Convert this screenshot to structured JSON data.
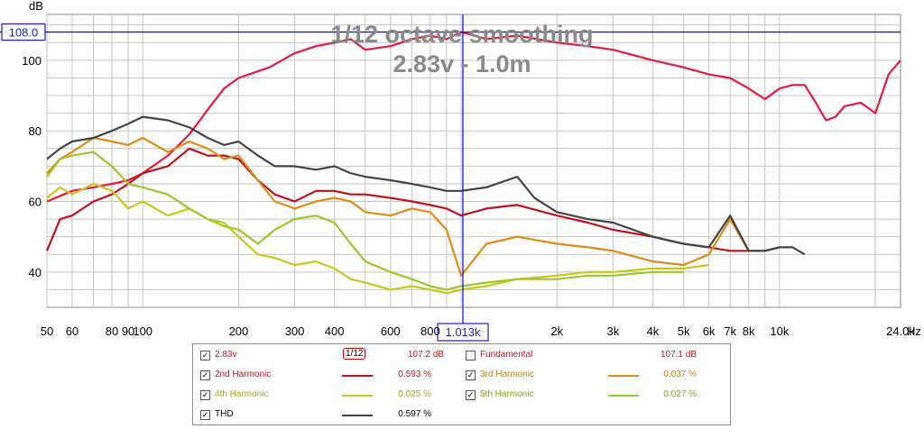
{
  "chart_data": {
    "type": "line",
    "title": "1/12 octave smoothing",
    "subtitle": "2.83v - 1.0m",
    "ylabel": "dB",
    "xunit": "Hz",
    "xscale": "log",
    "xlim": [
      50,
      24000
    ],
    "ylim": [
      30,
      113
    ],
    "x_ticks": [
      {
        "v": 50,
        "label": "50"
      },
      {
        "v": 60,
        "label": "60"
      },
      {
        "v": 80,
        "label": "80"
      },
      {
        "v": 90,
        "label": "90"
      },
      {
        "v": 100,
        "label": "100"
      },
      {
        "v": 200,
        "label": "200"
      },
      {
        "v": 300,
        "label": "300"
      },
      {
        "v": 400,
        "label": "400"
      },
      {
        "v": 600,
        "label": "600"
      },
      {
        "v": 800,
        "label": "800"
      },
      {
        "v": 2000,
        "label": "2k"
      },
      {
        "v": 3000,
        "label": "3k"
      },
      {
        "v": 4000,
        "label": "4k"
      },
      {
        "v": 5000,
        "label": "5k"
      },
      {
        "v": 6000,
        "label": "6k"
      },
      {
        "v": 7000,
        "label": "7k"
      },
      {
        "v": 8000,
        "label": "8k"
      },
      {
        "v": 10000,
        "label": "10k"
      },
      {
        "v": 24000,
        "label": "24.0k"
      }
    ],
    "y_ticks": [
      40,
      60,
      80,
      100
    ],
    "cursor": {
      "x": 1013,
      "y": 108.0,
      "x_label": "1.013k",
      "y_label": "108.0"
    },
    "grid": true,
    "series": [
      {
        "name": "2.83v",
        "color": "#e8173c",
        "x": [
          50,
          60,
          70,
          80,
          90,
          100,
          120,
          140,
          160,
          180,
          200,
          250,
          300,
          350,
          400,
          450,
          500,
          600,
          700,
          800,
          900,
          1000,
          1100,
          1200,
          1500,
          2000,
          2500,
          3000,
          4000,
          5000,
          6000,
          7000,
          8000,
          9000,
          10000,
          11000,
          12000,
          13000,
          14000,
          15000,
          16000,
          18000,
          20000,
          22000,
          24000
        ],
        "y": [
          60,
          63,
          64,
          65,
          66,
          68,
          73,
          79,
          86,
          92,
          95,
          98,
          102,
          104,
          105,
          106,
          103,
          104,
          106,
          107,
          106,
          108,
          107,
          106,
          107,
          105,
          104,
          103,
          100,
          98,
          96,
          95,
          92,
          89,
          92,
          93,
          93,
          88,
          83,
          84,
          87,
          88,
          85,
          96,
          100
        ]
      },
      {
        "name": "2nd Harmonic",
        "color": "#c0101e",
        "x": [
          50,
          55,
          60,
          70,
          80,
          90,
          100,
          120,
          140,
          160,
          180,
          200,
          230,
          260,
          300,
          350,
          400,
          450,
          500,
          600,
          700,
          800,
          900,
          1000,
          1200,
          1500,
          2000,
          2500,
          3000,
          4000,
          5000,
          6000,
          7000,
          8000,
          9000,
          10000
        ],
        "y": [
          46,
          55,
          56,
          60,
          62,
          65,
          68,
          70,
          75,
          73,
          73,
          72,
          66,
          62,
          60,
          63,
          63,
          62,
          62,
          61,
          60,
          59,
          58,
          56,
          58,
          59,
          56,
          54,
          52,
          50,
          48,
          47,
          46,
          46,
          46,
          47
        ]
      },
      {
        "name": "3rd Harmonic",
        "color": "#e08a10",
        "x": [
          50,
          55,
          60,
          70,
          80,
          90,
          100,
          120,
          140,
          160,
          180,
          200,
          230,
          260,
          300,
          350,
          400,
          450,
          500,
          600,
          700,
          800,
          900,
          1000,
          1200,
          1500,
          2000,
          2500,
          3000,
          4000,
          5000,
          6000,
          7000,
          8000
        ],
        "y": [
          68,
          72,
          74,
          78,
          77,
          76,
          78,
          74,
          77,
          75,
          72,
          73,
          66,
          60,
          58,
          60,
          61,
          60,
          57,
          56,
          58,
          57,
          52,
          39,
          48,
          50,
          48,
          47,
          46,
          43,
          42,
          45,
          55,
          46
        ]
      },
      {
        "name": "4th Harmonic",
        "color": "#c8c81a",
        "x": [
          50,
          55,
          60,
          70,
          80,
          90,
          100,
          120,
          140,
          160,
          180,
          200,
          230,
          260,
          300,
          350,
          400,
          450,
          500,
          600,
          700,
          800,
          900,
          1000,
          1200,
          1500,
          2000,
          2500,
          3000,
          4000,
          5000,
          6000
        ],
        "y": [
          61,
          64,
          62,
          65,
          63,
          58,
          60,
          56,
          58,
          55,
          54,
          50,
          45,
          44,
          42,
          43,
          41,
          38,
          37,
          35,
          36,
          35,
          34,
          35,
          36,
          38,
          39,
          40,
          40,
          41,
          41,
          42
        ]
      },
      {
        "name": "5th Harmonic",
        "color": "#9ac82a",
        "x": [
          50,
          55,
          60,
          70,
          80,
          90,
          100,
          120,
          140,
          160,
          180,
          200,
          230,
          260,
          300,
          350,
          400,
          450,
          500,
          600,
          700,
          800,
          900,
          1000,
          1200,
          1500,
          2000,
          2500,
          3000,
          4000,
          5000
        ],
        "y": [
          67,
          72,
          73,
          74,
          70,
          65,
          64,
          62,
          58,
          55,
          53,
          52,
          48,
          52,
          55,
          56,
          54,
          48,
          43,
          40,
          38,
          36,
          35,
          36,
          37,
          38,
          38,
          39,
          39,
          40,
          40
        ]
      },
      {
        "name": "THD",
        "color": "#444444",
        "x": [
          50,
          55,
          60,
          70,
          80,
          90,
          100,
          120,
          140,
          160,
          180,
          200,
          230,
          260,
          300,
          350,
          400,
          450,
          500,
          600,
          700,
          800,
          900,
          1000,
          1200,
          1500,
          1700,
          2000,
          2500,
          3000,
          4000,
          5000,
          6000,
          7000,
          8000,
          9000,
          10000,
          11000,
          12000
        ],
        "y": [
          72,
          75,
          77,
          78,
          80,
          82,
          84,
          83,
          81,
          78,
          76,
          77,
          73,
          70,
          70,
          69,
          70,
          68,
          67,
          66,
          65,
          64,
          63,
          63,
          64,
          67,
          61,
          57,
          55,
          54,
          50,
          48,
          47,
          56,
          46,
          46,
          47,
          47,
          45
        ]
      }
    ]
  },
  "legend": [
    {
      "name": "2.83v",
      "checked": true,
      "value": "107.2 dB",
      "smoothing": "1/12",
      "color": "#e8173c"
    },
    {
      "name": "Fundamental",
      "checked": false,
      "value": "107.1 dB"
    },
    {
      "name": "2nd Harmonic",
      "checked": true,
      "value": "0.593 %",
      "color": "#c0101e"
    },
    {
      "name": "3rd Harmonic",
      "checked": true,
      "value": "0.037 %",
      "color": "#e08a10"
    },
    {
      "name": "4th Harmonic",
      "checked": true,
      "value": "0.025 %",
      "color": "#c8c81a"
    },
    {
      "name": "5th Harmonic",
      "checked": true,
      "value": "0.027 %",
      "color": "#9ac82a"
    },
    {
      "name": "THD",
      "checked": true,
      "value": "0.597 %",
      "color": "#444444"
    }
  ]
}
